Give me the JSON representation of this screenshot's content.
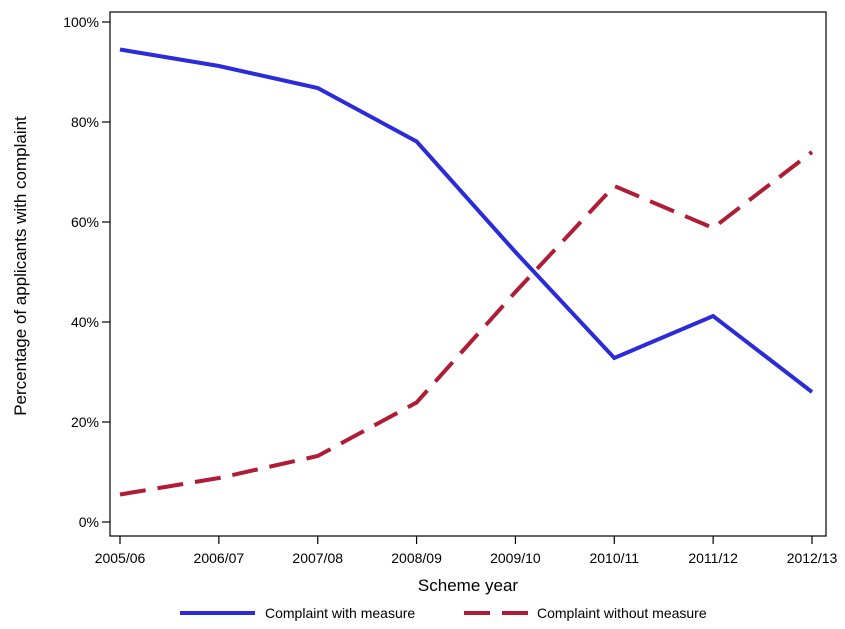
{
  "chart_data": {
    "type": "line",
    "title": "",
    "xlabel": "Scheme year",
    "ylabel": "Percentage of applicants with complaint",
    "categories": [
      "2005/06",
      "2006/07",
      "2007/08",
      "2008/09",
      "2009/10",
      "2010/11",
      "2011/12",
      "2012/13"
    ],
    "y_ticks": [
      "0%",
      "20%",
      "40%",
      "60%",
      "80%",
      "100%"
    ],
    "ylim": [
      0,
      100
    ],
    "grid": false,
    "legend_position": "bottom",
    "series": [
      {
        "name": "Complaint with measure",
        "color": "#2b2bd9",
        "dash": "solid",
        "values": [
          94.5,
          91.2,
          86.8,
          76.1,
          54,
          32.8,
          41.2,
          26
        ]
      },
      {
        "name": "Complaint without measure",
        "color": "#b01c36",
        "dash": "dashed",
        "values": [
          5.5,
          8.8,
          13.2,
          23.9,
          46,
          67.2,
          58.8,
          74
        ]
      }
    ]
  }
}
